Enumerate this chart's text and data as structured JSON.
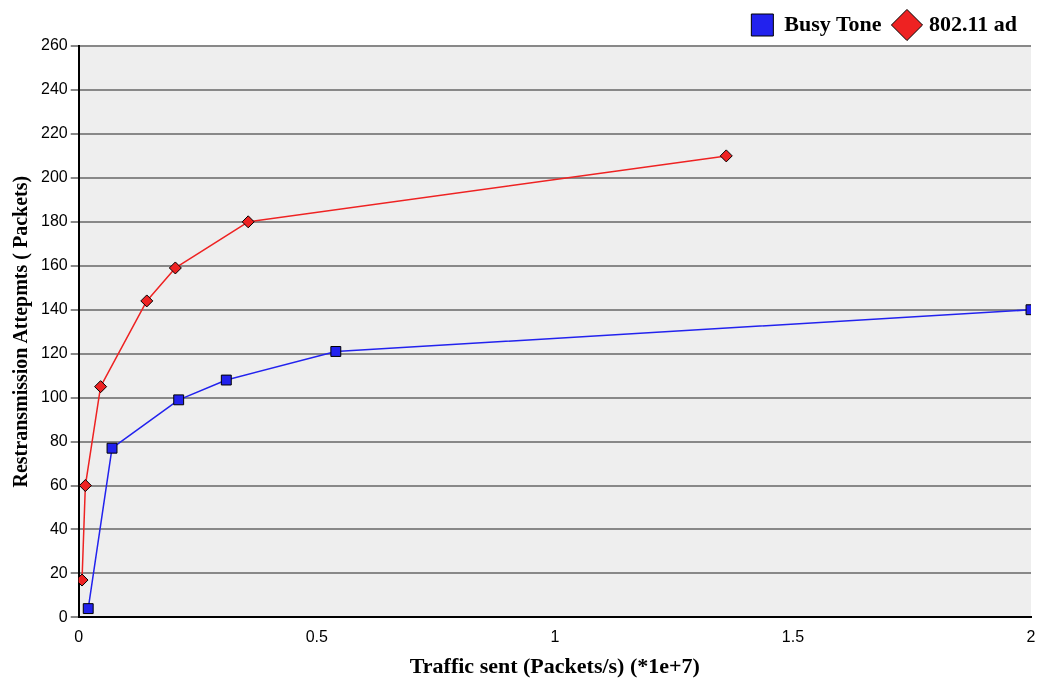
{
  "chart_data": {
    "type": "line",
    "xlabel": "Traffic sent (Packets/s) (*1e+7)",
    "ylabel": "Restransmission Attepmts ( Packets)",
    "xlim": [
      0,
      2
    ],
    "xticks": [
      0,
      0.5,
      1,
      1.5,
      2
    ],
    "ylim": [
      0,
      260
    ],
    "yticks": [
      0,
      20,
      40,
      60,
      80,
      100,
      120,
      140,
      160,
      180,
      200,
      220,
      240,
      260
    ],
    "grid": "y",
    "legend": "top right",
    "series": [
      {
        "name": "Busy Tone",
        "color": "#2222ee",
        "marker": "square",
        "x": [
          0.02,
          0.07,
          0.21,
          0.31,
          0.54,
          2.0
        ],
        "values": [
          4,
          77,
          99,
          108,
          121,
          140
        ]
      },
      {
        "name": "802.11 ad",
        "color": "#ee2222",
        "marker": "diamond",
        "x": [
          0.007,
          0.014,
          0.046,
          0.143,
          0.203,
          0.356,
          1.36
        ],
        "values": [
          17,
          60,
          105,
          144,
          159,
          180,
          210
        ]
      }
    ]
  }
}
